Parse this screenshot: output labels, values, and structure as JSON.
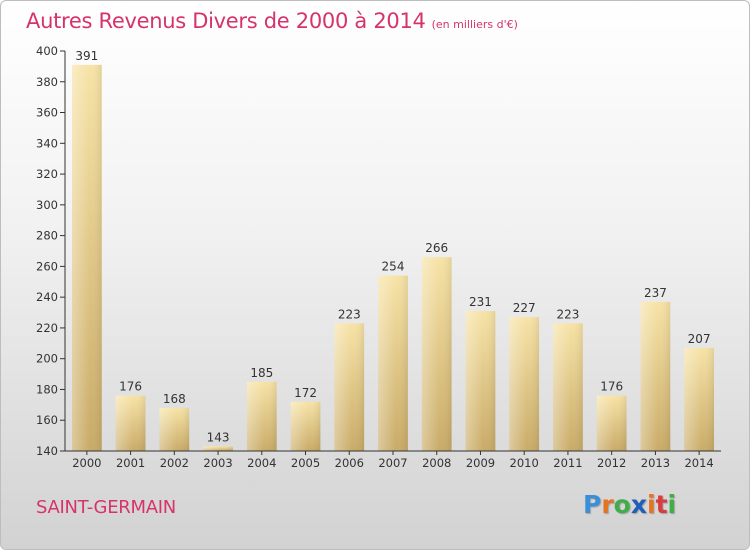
{
  "chart_data": {
    "type": "bar",
    "title": "Autres Revenus Divers de 2000 à 2014",
    "subtitle": "(en milliers d'€)",
    "categories": [
      "2000",
      "2001",
      "2002",
      "2003",
      "2004",
      "2005",
      "2006",
      "2007",
      "2008",
      "2009",
      "2010",
      "2011",
      "2012",
      "2013",
      "2014"
    ],
    "values": [
      391,
      176,
      168,
      143,
      185,
      172,
      223,
      254,
      266,
      231,
      227,
      223,
      176,
      237,
      207
    ],
    "ylim": [
      140,
      400
    ],
    "yticks": [
      140,
      160,
      180,
      200,
      220,
      240,
      260,
      280,
      300,
      320,
      340,
      360,
      380,
      400
    ],
    "xlabel": "",
    "ylabel": "",
    "grid": false,
    "data_labels": true,
    "bar_color": "#e8cc84"
  },
  "footer": {
    "commune": "SAINT-GERMAIN",
    "logo_letters": [
      "P",
      "r",
      "o",
      "x",
      "i",
      "t",
      "i"
    ],
    "logo_colors": [
      "#3a8fd8",
      "#e8731f",
      "#3fae49",
      "#1f5fb8",
      "#e8731f",
      "#d93c3c",
      "#3fae49"
    ]
  },
  "colors": {
    "title": "#d6336c",
    "axis": "#333333"
  }
}
